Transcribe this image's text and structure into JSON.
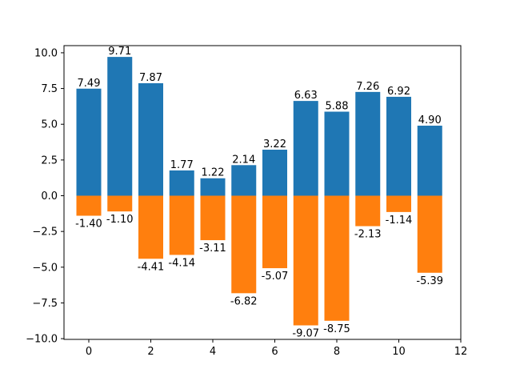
{
  "chart_data": {
    "type": "bar",
    "title": "",
    "xlabel": "",
    "ylabel": "",
    "xlim": [
      -0.8,
      12
    ],
    "ylim": [
      -10.05,
      10.5
    ],
    "grid": false,
    "x": [
      0,
      1,
      2,
      3,
      4,
      5,
      6,
      7,
      8,
      9,
      10,
      11
    ],
    "series": [
      {
        "color": "#1f77b4",
        "values": [
          7.49,
          9.71,
          7.87,
          1.77,
          1.22,
          2.14,
          3.22,
          6.63,
          5.88,
          7.26,
          6.92,
          4.9
        ],
        "labels": [
          "7.49",
          "9.71",
          "7.87",
          "1.77",
          "1.22",
          "2.14",
          "3.22",
          "6.63",
          "5.88",
          "7.26",
          "6.92",
          "4.90"
        ]
      },
      {
        "color": "#ff7f0e",
        "values": [
          -1.4,
          -1.1,
          -4.41,
          -4.14,
          -3.11,
          -6.82,
          -5.07,
          -9.07,
          -8.75,
          -2.13,
          -1.14,
          -5.39
        ],
        "labels": [
          "-1.40",
          "-1.10",
          "-4.41",
          "-4.14",
          "-3.11",
          "-6.82",
          "-5.07",
          "-9.07",
          "-8.75",
          "-2.13",
          "-1.14",
          "-5.39"
        ]
      }
    ],
    "x_ticks": [
      0,
      2,
      4,
      6,
      8,
      10,
      12
    ],
    "x_tick_labels": [
      "0",
      "2",
      "4",
      "6",
      "8",
      "10",
      "12"
    ],
    "y_ticks": [
      -10,
      -7.5,
      -5,
      -2.5,
      0,
      2.5,
      5,
      7.5,
      10
    ],
    "y_tick_labels": [
      "−10.0",
      "−7.5",
      "−5.0",
      "−2.5",
      "0.0",
      "2.5",
      "5.0",
      "7.5",
      "10.0"
    ]
  }
}
